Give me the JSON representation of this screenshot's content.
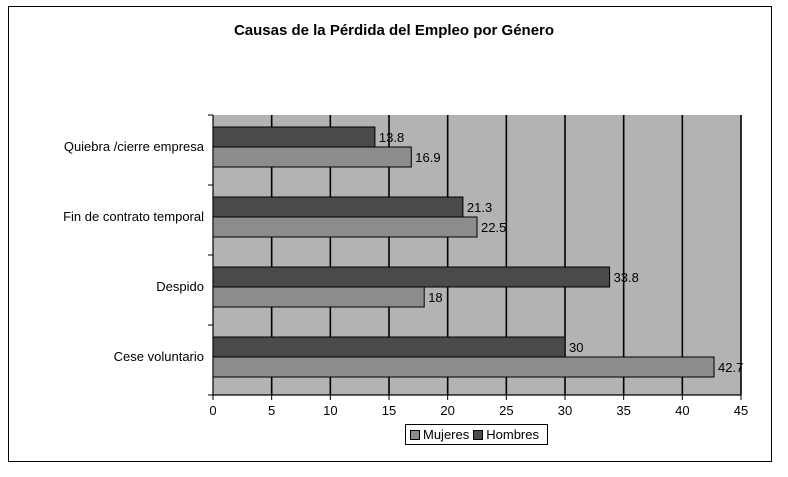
{
  "chart_data": {
    "type": "bar",
    "orientation": "horizontal",
    "title": "Causas de la Pérdida del Empleo por Género",
    "categories": [
      "Quiebra /cierre  empresa",
      "Fin de contrato temporal",
      "Despido",
      "Cese voluntario"
    ],
    "series": [
      {
        "name": "Hombres",
        "values": [
          13.8,
          21.3,
          33.8,
          30
        ],
        "labels": [
          "13.8",
          "21.3",
          "33.8",
          "30"
        ],
        "color": "#4a4a4a"
      },
      {
        "name": "Mujeres",
        "values": [
          16.9,
          22.5,
          18,
          42.7
        ],
        "labels": [
          "16.9",
          "22.5",
          "18",
          "42.7"
        ],
        "color": "#8c8c8c"
      }
    ],
    "xlim": [
      0,
      45
    ],
    "xticks": [
      "0",
      "5",
      "10",
      "15",
      "20",
      "25",
      "30",
      "35",
      "40",
      "45"
    ],
    "grid": true,
    "plot_background": "#b3b3b3",
    "legend": {
      "placement": "bottom",
      "entries": [
        "Mujeres",
        "Hombres"
      ]
    }
  }
}
